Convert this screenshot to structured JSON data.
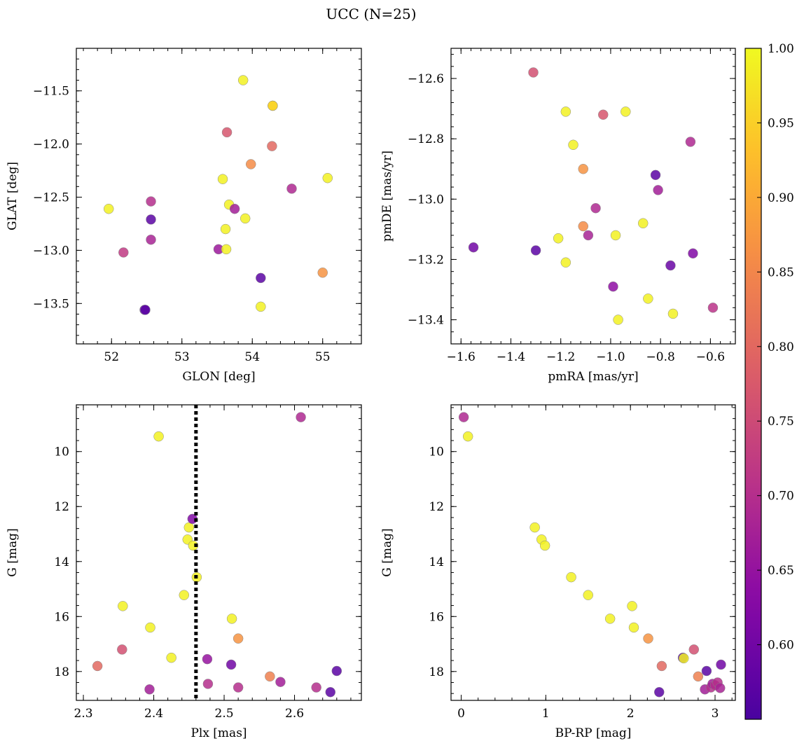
{
  "title": "UCC (N=25)",
  "colorbar": {
    "range": [
      0.55,
      1.0
    ],
    "ticks": [
      0.6,
      0.65,
      0.7,
      0.75,
      0.8,
      0.85,
      0.9,
      0.95,
      1.0
    ],
    "tick_labels": [
      "0.60",
      "0.65",
      "0.70",
      "0.75",
      "0.80",
      "0.85",
      "0.90",
      "0.95",
      "1.00"
    ],
    "colormap": "plasma"
  },
  "chart_data": [
    {
      "id": "glon-glat",
      "type": "scatter",
      "xlabel": "GLON [deg]",
      "ylabel": "GLAT [deg]",
      "xlim": [
        51.5,
        55.55
      ],
      "ylim": [
        -13.88,
        -11.1
      ],
      "xticks": [
        52,
        53,
        54,
        55
      ],
      "yticks": [
        -13.5,
        -13.0,
        -12.5,
        -12.0,
        -11.5
      ],
      "xtick_labels": [
        "52",
        "53",
        "54",
        "55"
      ],
      "ytick_labels": [
        "−13.5",
        "−13.0",
        "−12.5",
        "−12.0",
        "−11.5"
      ],
      "x": [
        51.96,
        52.17,
        52.47,
        52.48,
        52.56,
        52.56,
        52.56,
        53.52,
        53.58,
        53.62,
        53.63,
        53.64,
        53.67,
        53.75,
        53.87,
        53.9,
        53.98,
        54.12,
        54.12,
        54.28,
        54.29,
        54.29,
        54.56,
        55.0,
        55.07
      ],
      "y": [
        -12.61,
        -13.02,
        -13.56,
        -13.56,
        -12.54,
        -12.71,
        -12.9,
        -12.99,
        -12.33,
        -12.8,
        -12.99,
        -11.89,
        -12.57,
        -12.61,
        -11.4,
        -12.7,
        -12.19,
        -13.26,
        -13.53,
        -12.02,
        -11.64,
        -11.64,
        -12.42,
        -13.21,
        -12.32
      ],
      "c": [
        0.99,
        0.72,
        0.57,
        0.57,
        0.7,
        0.57,
        0.68,
        0.66,
        0.99,
        0.99,
        0.99,
        0.77,
        0.99,
        0.67,
        0.99,
        0.99,
        0.86,
        0.57,
        0.99,
        0.8,
        0.99,
        0.95,
        0.69,
        0.87,
        0.99
      ]
    },
    {
      "id": "pm",
      "type": "scatter",
      "xlabel": "pmRA [mas/yr]",
      "ylabel": "pmDE [mas/yr]",
      "xlim": [
        -1.64,
        -0.5
      ],
      "ylim": [
        -13.48,
        -12.5
      ],
      "xticks": [
        -1.6,
        -1.4,
        -1.2,
        -1.0,
        -0.8,
        -0.6
      ],
      "yticks": [
        -13.4,
        -13.2,
        -13.0,
        -12.8,
        -12.6
      ],
      "xtick_labels": [
        "−1.6",
        "−1.4",
        "−1.2",
        "−1.0",
        "−0.8",
        "−0.6"
      ],
      "ytick_labels": [
        "−13.4",
        "−13.2",
        "−13.0",
        "−12.8",
        "−12.6"
      ],
      "x": [
        -1.55,
        -1.3,
        -1.31,
        -1.21,
        -1.18,
        -1.18,
        -1.15,
        -1.11,
        -1.11,
        -1.09,
        -1.06,
        -1.03,
        -0.99,
        -0.98,
        -0.97,
        -0.94,
        -0.87,
        -0.85,
        -0.82,
        -0.81,
        -0.76,
        -0.75,
        -0.68,
        -0.67,
        -0.59
      ],
      "y": [
        -13.16,
        -13.17,
        -12.58,
        -13.13,
        -12.71,
        -13.21,
        -12.82,
        -12.9,
        -13.09,
        -13.12,
        -13.03,
        -12.72,
        -13.29,
        -13.12,
        -13.4,
        -12.71,
        -13.08,
        -13.33,
        -12.92,
        -12.97,
        -13.22,
        -13.38,
        -12.81,
        -13.18,
        -13.36
      ],
      "c": [
        0.6,
        0.57,
        0.76,
        0.99,
        0.99,
        0.99,
        0.99,
        0.87,
        0.86,
        0.68,
        0.69,
        0.77,
        0.64,
        0.99,
        0.99,
        0.99,
        0.99,
        0.99,
        0.57,
        0.67,
        0.59,
        0.99,
        0.69,
        0.62,
        0.71
      ]
    },
    {
      "id": "plx-g",
      "type": "scatter",
      "xlabel": "Plx [mas]",
      "ylabel": "G [mag]",
      "xlim": [
        2.29,
        2.695
      ],
      "ylim": [
        19.05,
        8.3
      ],
      "xticks": [
        2.3,
        2.4,
        2.5,
        2.6
      ],
      "yticks": [
        10,
        12,
        14,
        16,
        18
      ],
      "xtick_labels": [
        "2.3",
        "2.4",
        "2.5",
        "2.6"
      ],
      "ytick_labels": [
        "10",
        "12",
        "14",
        "16",
        "18"
      ],
      "vline": 2.46,
      "x": [
        2.32,
        2.355,
        2.356,
        2.394,
        2.395,
        2.407,
        2.425,
        2.443,
        2.448,
        2.45,
        2.455,
        2.456,
        2.461,
        2.476,
        2.477,
        2.51,
        2.511,
        2.52,
        2.52,
        2.565,
        2.58,
        2.609,
        2.631,
        2.651,
        2.66
      ],
      "y": [
        17.8,
        17.2,
        15.62,
        18.65,
        16.4,
        9.45,
        17.5,
        15.22,
        13.2,
        12.76,
        12.45,
        13.42,
        14.57,
        17.55,
        18.45,
        17.75,
        16.08,
        18.58,
        16.8,
        18.18,
        18.38,
        8.75,
        18.58,
        18.75,
        17.98
      ],
      "c": [
        0.8,
        0.76,
        0.99,
        0.67,
        0.99,
        0.99,
        0.99,
        0.99,
        0.99,
        0.99,
        0.62,
        0.99,
        0.99,
        0.65,
        0.7,
        0.6,
        0.99,
        0.7,
        0.87,
        0.84,
        0.67,
        0.69,
        0.7,
        0.57,
        0.57
      ]
    },
    {
      "id": "bprp-g",
      "type": "scatter",
      "xlabel": "BP-RP [mag]",
      "ylabel": "G [mag]",
      "xlim": [
        -0.12,
        3.24
      ],
      "ylim": [
        19.05,
        8.3
      ],
      "xticks": [
        0,
        1,
        2,
        3
      ],
      "yticks": [
        10,
        12,
        14,
        16,
        18
      ],
      "xtick_labels": [
        "0",
        "1",
        "2",
        "3"
      ],
      "ytick_labels": [
        "10",
        "12",
        "14",
        "16",
        "18"
      ],
      "x": [
        0.03,
        0.08,
        0.87,
        0.95,
        0.99,
        1.3,
        1.5,
        1.76,
        2.02,
        2.04,
        2.21,
        2.37,
        2.34,
        2.62,
        2.63,
        2.75,
        2.8,
        2.88,
        2.9,
        2.95,
        2.97,
        3.0,
        3.03,
        3.06,
        3.07
      ],
      "y": [
        8.75,
        9.45,
        12.76,
        13.2,
        13.42,
        14.57,
        15.22,
        16.08,
        15.62,
        16.4,
        16.8,
        17.8,
        18.75,
        17.5,
        17.52,
        17.2,
        18.18,
        18.65,
        17.98,
        18.58,
        18.45,
        18.5,
        18.4,
        18.6,
        17.75
      ],
      "c": [
        0.69,
        0.99,
        0.99,
        0.99,
        0.99,
        0.99,
        0.99,
        0.99,
        0.99,
        0.99,
        0.87,
        0.8,
        0.57,
        0.57,
        0.99,
        0.76,
        0.84,
        0.67,
        0.57,
        0.7,
        0.67,
        0.7,
        0.7,
        0.68,
        0.6
      ]
    }
  ]
}
